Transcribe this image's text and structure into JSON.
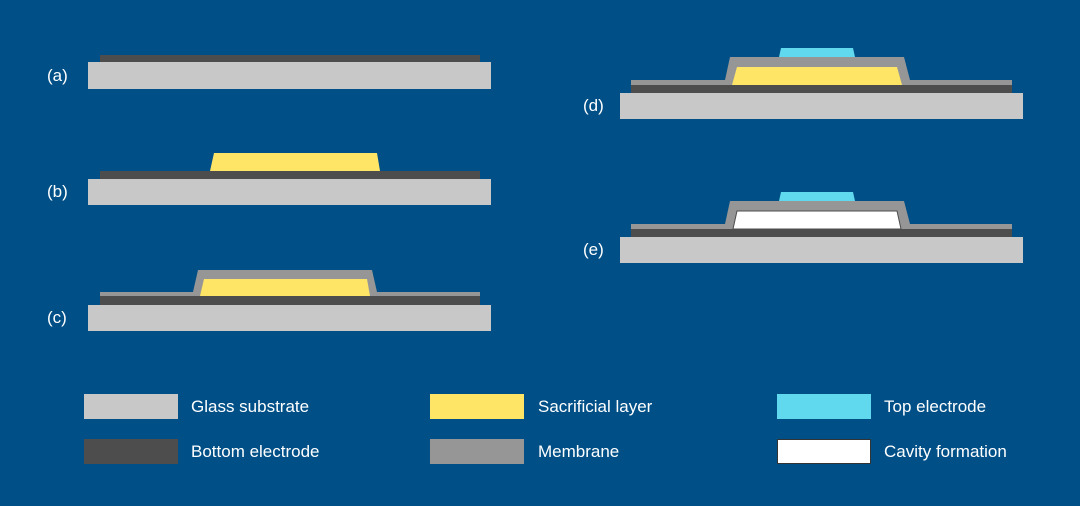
{
  "colors": {
    "background": "#004f86",
    "glass_substrate": "#c8c8c8",
    "bottom_electrode": "#4d4d4d",
    "sacrificial_layer": "#ffe566",
    "membrane": "#969696",
    "top_electrode": "#60d8ee",
    "cavity": "#ffffff"
  },
  "steps": [
    {
      "label": "(a)"
    },
    {
      "label": "(b)"
    },
    {
      "label": "(c)"
    },
    {
      "label": "(d)"
    },
    {
      "label": "(e)"
    }
  ],
  "legend": [
    {
      "label": "Glass substrate",
      "color": "#c8c8c8"
    },
    {
      "label": "Bottom electrode",
      "color": "#4d4d4d"
    },
    {
      "label": "Sacrificial layer",
      "color": "#ffe566"
    },
    {
      "label": "Membrane",
      "color": "#969696"
    },
    {
      "label": "Top electrode",
      "color": "#60d8ee"
    },
    {
      "label": "Cavity formation",
      "color": "#ffffff"
    }
  ]
}
